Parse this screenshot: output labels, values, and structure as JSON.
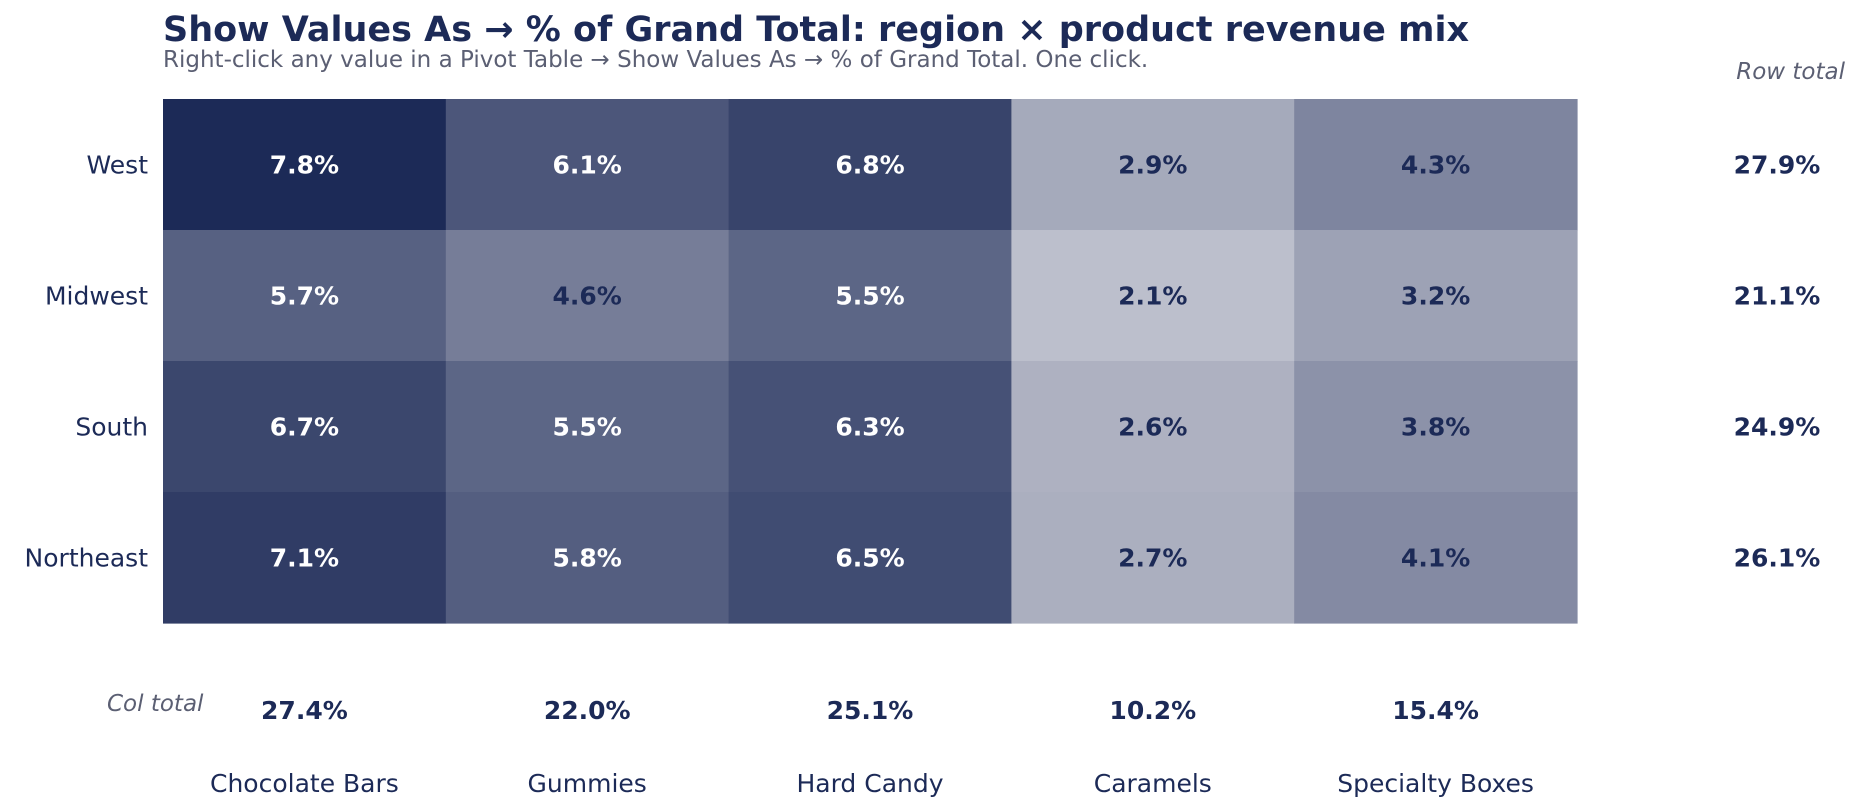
{
  "chart_data": {
    "type": "heatmap",
    "title": "Show Values As → % of Grand Total: region × product revenue mix",
    "subtitle": "Right-click any value in a Pivot Table → Show Values As → % of Grand Total. One click.",
    "rows": [
      "West",
      "Midwest",
      "South",
      "Northeast"
    ],
    "columns": [
      "Chocolate Bars",
      "Gummies",
      "Hard Candy",
      "Caramels",
      "Specialty Boxes"
    ],
    "values": [
      [
        7.8,
        6.1,
        6.8,
        2.9,
        4.3
      ],
      [
        5.7,
        4.6,
        5.5,
        2.1,
        3.2
      ],
      [
        6.7,
        5.5,
        6.3,
        2.6,
        3.8
      ],
      [
        7.1,
        5.8,
        6.5,
        2.7,
        4.1
      ]
    ],
    "cell_labels": [
      [
        "7.8%",
        "6.1%",
        "6.8%",
        "2.9%",
        "4.3%"
      ],
      [
        "5.7%",
        "4.6%",
        "5.5%",
        "2.1%",
        "3.2%"
      ],
      [
        "6.7%",
        "5.5%",
        "6.3%",
        "2.6%",
        "3.8%"
      ],
      [
        "7.1%",
        "5.8%",
        "6.5%",
        "2.7%",
        "4.1%"
      ]
    ],
    "row_totals_label": "Row total",
    "row_totals": [
      "27.9%",
      "21.1%",
      "24.9%",
      "26.1%"
    ],
    "col_totals_label": "Col total",
    "col_totals": [
      "27.4%",
      "22.0%",
      "25.1%",
      "10.2%",
      "15.4%"
    ],
    "colors": {
      "dark": "#1c2a57",
      "light": "#c6c8d3",
      "text_dark": "#1c2a57",
      "text_light": "#ffffff",
      "muted": "#5b5f73"
    }
  }
}
